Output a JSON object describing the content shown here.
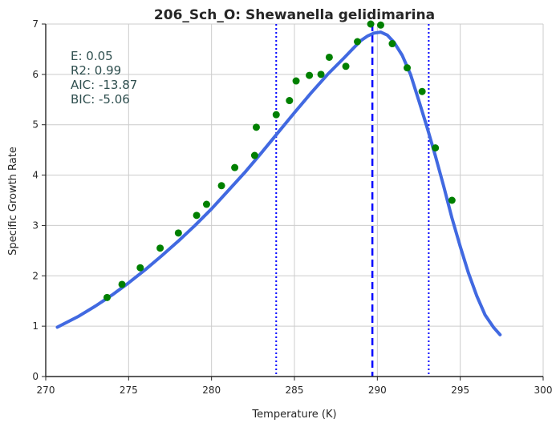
{
  "chart_data": {
    "type": "scatter",
    "title": "206_Sch_O: Shewanella gelidimarina",
    "xlabel": "Temperature (K)",
    "ylabel": "Specific Growth Rate",
    "xlim": [
      270,
      300
    ],
    "ylim": [
      0,
      7
    ],
    "xticks": [
      "270",
      "275",
      "280",
      "285",
      "290",
      "295",
      "300"
    ],
    "yticks": [
      "0",
      "1",
      "2",
      "3",
      "4",
      "5",
      "6",
      "7"
    ],
    "grid": true,
    "stats": [
      "E:  0.05",
      "R2:  0.99",
      "AIC: -13.87",
      "BIC: -5.06"
    ],
    "series": [
      {
        "kind": "points",
        "color": "#008000",
        "x": [
          273.7,
          274.6,
          275.7,
          276.9,
          278.0,
          279.1,
          279.7,
          280.6,
          281.4,
          282.6,
          282.7,
          283.9,
          284.7,
          285.1,
          285.9,
          286.6,
          287.1,
          288.1,
          288.8,
          289.6,
          290.2,
          290.9,
          291.8,
          292.7,
          293.5,
          294.5
        ],
        "y": [
          1.57,
          1.83,
          2.16,
          2.55,
          2.85,
          3.2,
          3.42,
          3.79,
          4.15,
          4.39,
          4.95,
          5.2,
          5.48,
          5.87,
          5.98,
          6.0,
          6.34,
          6.16,
          6.65,
          7.0,
          6.98,
          6.61,
          6.13,
          5.66,
          4.54,
          3.5
        ]
      },
      {
        "kind": "fit",
        "color": "#4169e1",
        "x": [
          270.7,
          272,
          273,
          274,
          275,
          276,
          277,
          278,
          279,
          280,
          281,
          282,
          283,
          284,
          285,
          286,
          287,
          288,
          288.5,
          289,
          289.4,
          289.8,
          290.2,
          290.6,
          291,
          291.5,
          292,
          292.5,
          293,
          293.5,
          294,
          294.5,
          295,
          295.5,
          296,
          296.5,
          297,
          297.4
        ],
        "y": [
          0.98,
          1.2,
          1.4,
          1.62,
          1.86,
          2.12,
          2.4,
          2.69,
          3.0,
          3.33,
          3.69,
          4.05,
          4.44,
          4.84,
          5.24,
          5.63,
          6.0,
          6.33,
          6.5,
          6.67,
          6.76,
          6.82,
          6.84,
          6.78,
          6.64,
          6.38,
          6.0,
          5.48,
          4.95,
          4.38,
          3.78,
          3.15,
          2.58,
          2.05,
          1.6,
          1.22,
          0.98,
          0.83
        ]
      }
    ],
    "vlines": [
      {
        "x": 283.9,
        "style": "dotted",
        "color": "#0000ff"
      },
      {
        "x": 289.7,
        "style": "dashed",
        "color": "#0000ff"
      },
      {
        "x": 293.1,
        "style": "dotted",
        "color": "#0000ff"
      }
    ]
  }
}
